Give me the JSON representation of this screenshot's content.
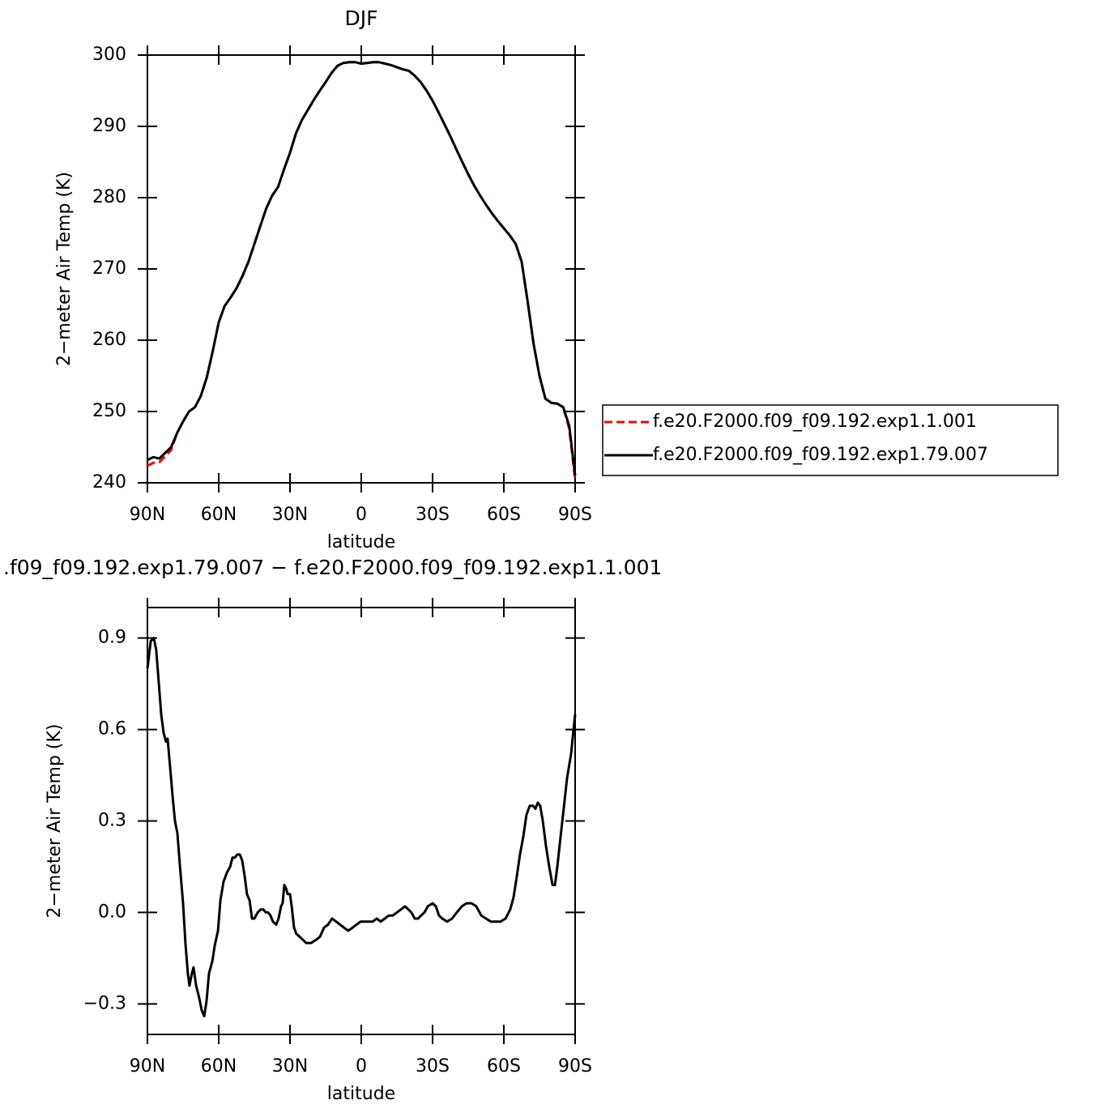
{
  "chart_data": [
    {
      "type": "line",
      "title": "DJF",
      "xlabel": "latitude",
      "ylabel": "2−meter Air Temp (K)",
      "xlim": [
        90,
        -90
      ],
      "ylim": [
        240,
        300
      ],
      "xticks": [
        {
          "value": 90,
          "label": "90N"
        },
        {
          "value": 60,
          "label": "60N"
        },
        {
          "value": 30,
          "label": "30N"
        },
        0,
        {
          "value": -30,
          "label": "30S"
        },
        {
          "value": -60,
          "label": "60S"
        },
        {
          "value": -90,
          "label": "90S"
        }
      ],
      "yticks": [
        240,
        250,
        260,
        270,
        280,
        290,
        300
      ],
      "legend": "right",
      "x": [
        90,
        87.5,
        85,
        82.5,
        80,
        77.5,
        75,
        72.5,
        70,
        67.5,
        65,
        62.5,
        60,
        57.5,
        55,
        52.5,
        50,
        47.5,
        45,
        42.5,
        40,
        37.5,
        35,
        32.5,
        30,
        27.5,
        25,
        22.5,
        20,
        17.5,
        15,
        12.5,
        10,
        7.5,
        5,
        2.5,
        0,
        -2.5,
        -5,
        -7.5,
        -10,
        -12.5,
        -15,
        -17.5,
        -20,
        -22.5,
        -25,
        -27.5,
        -30,
        -32.5,
        -35,
        -37.5,
        -40,
        -42.5,
        -45,
        -47.5,
        -50,
        -52.5,
        -55,
        -57.5,
        -60,
        -62.5,
        -65,
        -67.5,
        -70,
        -72.5,
        -75,
        -77.5,
        -80,
        -82.5,
        -85,
        -87.5,
        -90
      ],
      "series": [
        {
          "name": "f.e20.F2000.f09_f09.192.exp1.1.001",
          "color": "#ff0000",
          "dash": true,
          "values": [
            242.4,
            242.8,
            242.9,
            243.7,
            244.6,
            247.0,
            248.6,
            250.0,
            250.6,
            252.2,
            254.8,
            258.5,
            262.5,
            264.8,
            266.0,
            267.3,
            269.0,
            271.0,
            273.5,
            276.0,
            278.5,
            280.3,
            281.5,
            284.0,
            286.3,
            289.0,
            290.9,
            292.3,
            293.7,
            295.0,
            296.2,
            297.5,
            298.5,
            298.9,
            299.0,
            299.0,
            298.8,
            298.9,
            299.0,
            299.0,
            298.8,
            298.6,
            298.3,
            298.0,
            297.8,
            297.1,
            296.2,
            295.0,
            293.6,
            292.0,
            290.3,
            288.6,
            286.8,
            285.0,
            283.3,
            281.7,
            280.3,
            279.0,
            277.8,
            276.7,
            275.7,
            274.7,
            273.5,
            271.0,
            265.5,
            259.5,
            255.0,
            251.8,
            251.2,
            251.1,
            250.6,
            247.6,
            240.4
          ]
        },
        {
          "name": "f.e20.F2000.f09_f09.192.exp1.79.007",
          "color": "#000000",
          "dash": false,
          "values": [
            243.2,
            243.6,
            243.4,
            244.2,
            245.0,
            247.0,
            248.6,
            250.0,
            250.6,
            252.2,
            254.8,
            258.5,
            262.5,
            264.8,
            266.0,
            267.3,
            269.0,
            271.0,
            273.5,
            276.0,
            278.5,
            280.3,
            281.5,
            284.0,
            286.3,
            289.0,
            290.9,
            292.3,
            293.7,
            295.0,
            296.2,
            297.5,
            298.5,
            298.9,
            299.0,
            299.0,
            298.8,
            298.9,
            299.0,
            299.0,
            298.8,
            298.6,
            298.3,
            298.0,
            297.8,
            297.1,
            296.2,
            295.0,
            293.6,
            292.0,
            290.3,
            288.6,
            286.8,
            285.0,
            283.3,
            281.7,
            280.3,
            279.0,
            277.8,
            276.7,
            275.7,
            274.7,
            273.5,
            271.0,
            265.5,
            259.5,
            255.0,
            251.8,
            251.2,
            251.1,
            250.6,
            248.0,
            241.0
          ]
        }
      ]
    },
    {
      "type": "line",
      "title": ".f09_f09.192.exp1.79.007 − f.e20.F2000.f09_f09.192.exp1.1.001",
      "xlabel": "latitude",
      "ylabel": "2−meter Air Temp (K)",
      "xlim": [
        90,
        -90
      ],
      "ylim": [
        -0.4,
        1.0
      ],
      "xticks": [
        {
          "value": 90,
          "label": "90N"
        },
        {
          "value": 60,
          "label": "60N"
        },
        {
          "value": 30,
          "label": "30N"
        },
        0,
        {
          "value": -30,
          "label": "30S"
        },
        {
          "value": -60,
          "label": "60S"
        },
        {
          "value": -90,
          "label": "90S"
        }
      ],
      "yticks": [
        {
          "value": -0.3,
          "label": "−0.3"
        },
        {
          "value": 0,
          "label": "0.0"
        },
        0.3,
        0.6,
        0.9
      ],
      "x": [
        90,
        88.6,
        87.3,
        86.3,
        85.2,
        84.2,
        83.2,
        82.2,
        81.5,
        80.5,
        79.4,
        78.4,
        77.4,
        76.4,
        75.0,
        74.0,
        73.0,
        72.3,
        71.3,
        70.6,
        69.5,
        68.2,
        67.2,
        66.1,
        65.1,
        64.1,
        62.7,
        61.7,
        60.3,
        59.3,
        58.0,
        56.6,
        55.2,
        54.2,
        53.2,
        52.2,
        51.1,
        50.1,
        49.1,
        48.1,
        47.0,
        46.0,
        45.0,
        43.6,
        42.3,
        41.2,
        40.2,
        39.2,
        38.2,
        37.2,
        35.8,
        34.8,
        33.8,
        33.1,
        32.4,
        31.7,
        31.0,
        30.0,
        29.3,
        28.3,
        27.3,
        25.9,
        24.5,
        23.2,
        21.1,
        19.1,
        17.4,
        15.7,
        14.0,
        12.3,
        10.6,
        8.9,
        7.2,
        5.5,
        3.7,
        2.0,
        0.3,
        -1.4,
        -3.1,
        -4.8,
        -6.5,
        -8.2,
        -9.9,
        -11.6,
        -13.3,
        -15.0,
        -16.7,
        -18.4,
        -19.8,
        -21.1,
        -22.5,
        -23.9,
        -25.2,
        -26.6,
        -28.0,
        -30.0,
        -31.4,
        -32.7,
        -34.1,
        -36.1,
        -38.2,
        -40.2,
        -42.3,
        -44.3,
        -46.4,
        -48.4,
        -50.5,
        -52.5,
        -54.5,
        -56.6,
        -58.6,
        -60.7,
        -62.7,
        -64.1,
        -65.5,
        -66.8,
        -68.2,
        -69.5,
        -70.9,
        -72.3,
        -73.3,
        -74.3,
        -75.3,
        -76.4,
        -77.7,
        -79.1,
        -80.5,
        -81.5,
        -82.5,
        -83.9,
        -85.2,
        -86.6,
        -88.3,
        -90
      ],
      "series": [
        {
          "color": "#000000",
          "dash": false,
          "values": [
            0.8,
            0.89,
            0.9,
            0.86,
            0.75,
            0.65,
            0.59,
            0.56,
            0.57,
            0.48,
            0.38,
            0.3,
            0.26,
            0.16,
            0.03,
            -0.1,
            -0.2,
            -0.24,
            -0.2,
            -0.18,
            -0.24,
            -0.28,
            -0.32,
            -0.34,
            -0.29,
            -0.2,
            -0.16,
            -0.11,
            -0.06,
            0.04,
            0.1,
            0.13,
            0.15,
            0.18,
            0.18,
            0.19,
            0.19,
            0.17,
            0.12,
            0.06,
            0.04,
            -0.02,
            -0.02,
            0.0,
            0.01,
            0.01,
            0.0,
            0.0,
            -0.01,
            -0.03,
            -0.04,
            -0.02,
            0.02,
            0.03,
            0.09,
            0.08,
            0.06,
            0.06,
            0.02,
            -0.05,
            -0.07,
            -0.08,
            -0.09,
            -0.1,
            -0.1,
            -0.09,
            -0.08,
            -0.05,
            -0.04,
            -0.02,
            -0.03,
            -0.04,
            -0.05,
            -0.06,
            -0.05,
            -0.04,
            -0.03,
            -0.03,
            -0.03,
            -0.03,
            -0.02,
            -0.03,
            -0.02,
            -0.01,
            -0.01,
            0.0,
            0.01,
            0.02,
            0.01,
            0.0,
            -0.02,
            -0.02,
            -0.01,
            0.0,
            0.02,
            0.03,
            0.02,
            -0.01,
            -0.02,
            -0.03,
            -0.02,
            0.0,
            0.02,
            0.03,
            0.03,
            0.02,
            -0.01,
            -0.02,
            -0.03,
            -0.03,
            -0.03,
            -0.02,
            0.01,
            0.05,
            0.12,
            0.19,
            0.25,
            0.32,
            0.35,
            0.35,
            0.34,
            0.36,
            0.35,
            0.3,
            0.22,
            0.15,
            0.09,
            0.09,
            0.15,
            0.25,
            0.34,
            0.44,
            0.52,
            0.65
          ]
        }
      ]
    }
  ]
}
